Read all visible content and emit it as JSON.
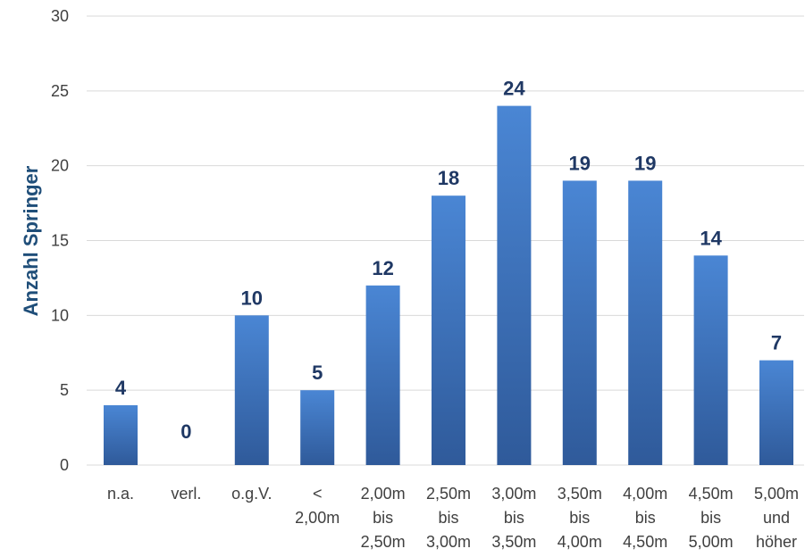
{
  "chart_data": {
    "type": "bar",
    "categories": [
      [
        "n.a."
      ],
      [
        "verl."
      ],
      [
        "o.g.V."
      ],
      [
        "<",
        "2,00m"
      ],
      [
        "2,00m",
        "bis",
        "2,50m"
      ],
      [
        "2,50m",
        "bis",
        "3,00m"
      ],
      [
        "3,00m",
        "bis",
        "3,50m"
      ],
      [
        "3,50m",
        "bis",
        "4,00m"
      ],
      [
        "4,00m",
        "bis",
        "4,50m"
      ],
      [
        "4,50m",
        "bis",
        "5,00m"
      ],
      [
        "5,00m",
        "und",
        "höher"
      ]
    ],
    "values": [
      4,
      0,
      10,
      5,
      12,
      18,
      24,
      19,
      19,
      14,
      7
    ],
    "data_labels": [
      "4",
      "0",
      "10",
      "5",
      "12",
      "18",
      "24",
      "19",
      "19",
      "14",
      "7"
    ],
    "title": "",
    "xlabel": "",
    "ylabel": "Anzahl Springer",
    "ylim": [
      0,
      30
    ],
    "yticks": [
      "0",
      "5",
      "10",
      "15",
      "20",
      "25",
      "30"
    ],
    "grid": true,
    "legend": "none",
    "colors": {
      "bar_top": "#4a86d4",
      "bar_bottom": "#2f5a9a",
      "label": "#1f3864",
      "axis_title": "#1f4e79"
    }
  }
}
